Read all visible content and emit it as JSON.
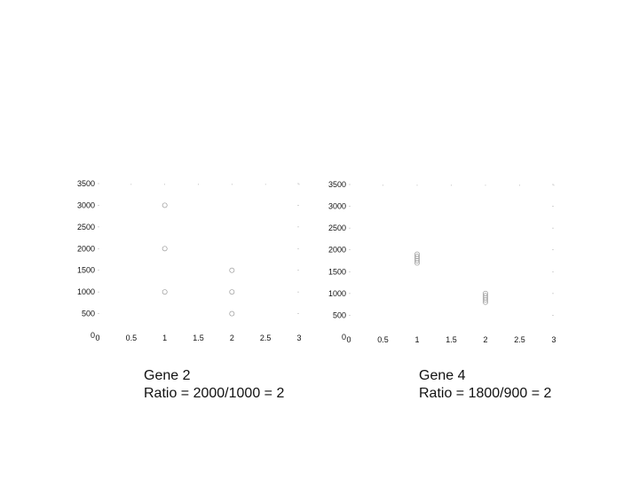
{
  "chart_data": [
    {
      "type": "scatter",
      "caption": [
        "Gene 2",
        "Ratio = 2000/1000 = 2"
      ],
      "xlim": [
        0,
        3
      ],
      "ylim": [
        0,
        3500
      ],
      "xticks": [
        "0",
        "0.5",
        "1",
        "1.5",
        "2",
        "2.5",
        "3"
      ],
      "yticks": [
        "0",
        "500",
        "1000",
        "1500",
        "2000",
        "2500",
        "3000",
        "3500"
      ],
      "grid": false,
      "points": [
        {
          "x": 1,
          "y": 3000
        },
        {
          "x": 1,
          "y": 2000
        },
        {
          "x": 1,
          "y": 1000
        },
        {
          "x": 2,
          "y": 1500
        },
        {
          "x": 2,
          "y": 1000
        },
        {
          "x": 2,
          "y": 500
        }
      ]
    },
    {
      "type": "scatter",
      "caption": [
        "Gene 4",
        "Ratio = 1800/900 = 2"
      ],
      "xlim": [
        0,
        3
      ],
      "ylim": [
        0,
        3500
      ],
      "xticks": [
        "0",
        "0.5",
        "1",
        "1.5",
        "2",
        "2.5",
        "3"
      ],
      "yticks": [
        "0",
        "500",
        "1000",
        "1500",
        "2000",
        "2500",
        "3000",
        "3500"
      ],
      "grid": false,
      "points": [
        {
          "x": 1,
          "y": 1900
        },
        {
          "x": 1,
          "y": 1850
        },
        {
          "x": 1,
          "y": 1800
        },
        {
          "x": 1,
          "y": 1750
        },
        {
          "x": 1,
          "y": 1700
        },
        {
          "x": 2,
          "y": 1000
        },
        {
          "x": 2,
          "y": 950
        },
        {
          "x": 2,
          "y": 900
        },
        {
          "x": 2,
          "y": 850
        },
        {
          "x": 2,
          "y": 800
        }
      ]
    }
  ]
}
